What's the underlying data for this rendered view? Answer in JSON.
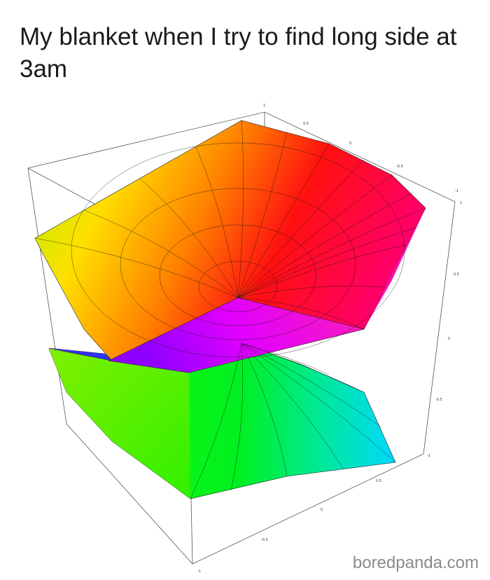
{
  "caption": "My blanket when I try to find long side at 3am",
  "watermark": "boredpanda.com",
  "plot": {
    "type": "3d-surface",
    "top_axis_ticks": [
      "1",
      "0.5",
      "0",
      "-0.5",
      "-1"
    ],
    "right_axis_ticks": [
      "1",
      "0.5",
      "0",
      "-0.5",
      "-1"
    ],
    "bottom_axis_ticks": [
      "1",
      "0.5",
      "0",
      "-0.5",
      "-1"
    ],
    "colors": [
      "#ffff00",
      "#ff8800",
      "#ff0000",
      "#ff00aa",
      "#ff00ff",
      "#8800ff",
      "#2020ff",
      "#00ccff",
      "#00ff88",
      "#00ff00",
      "#88ff00"
    ]
  }
}
